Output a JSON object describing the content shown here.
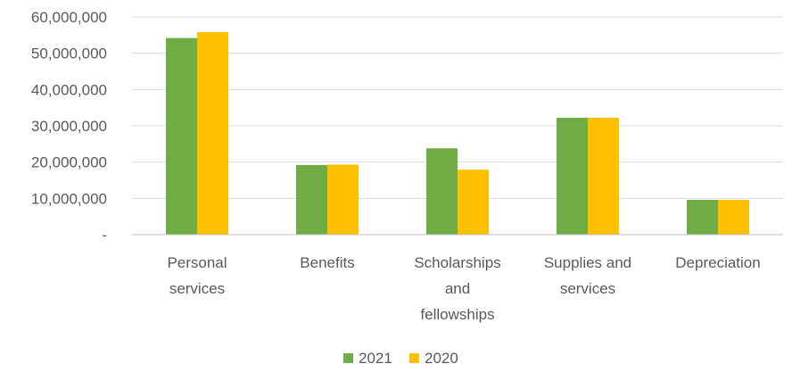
{
  "chart_data": {
    "type": "bar",
    "title": "",
    "xlabel": "",
    "ylabel": "",
    "categories": [
      [
        "Personal",
        "services"
      ],
      [
        "Benefits"
      ],
      [
        "Scholarships",
        "and",
        "fellowships"
      ],
      [
        "Supplies and",
        "services"
      ],
      [
        "Depreciation"
      ]
    ],
    "series": [
      {
        "name": "2021",
        "color": "#70ad47",
        "values": [
          54200000,
          19200000,
          23800000,
          32200000,
          9600000
        ]
      },
      {
        "name": "2020",
        "color": "#ffc000",
        "values": [
          55800000,
          19300000,
          17900000,
          32200000,
          9600000
        ]
      }
    ],
    "ylim": [
      0,
      60000000
    ],
    "yticks": [
      {
        "value": 0,
        "label": "-"
      },
      {
        "value": 10000000,
        "label": "10,000,000"
      },
      {
        "value": 20000000,
        "label": "20,000,000"
      },
      {
        "value": 30000000,
        "label": "30,000,000"
      },
      {
        "value": 40000000,
        "label": "40,000,000"
      },
      {
        "value": 50000000,
        "label": "50,000,000"
      },
      {
        "value": 60000000,
        "label": "60,000,000"
      }
    ],
    "grid": true,
    "legend_position": "bottom"
  }
}
